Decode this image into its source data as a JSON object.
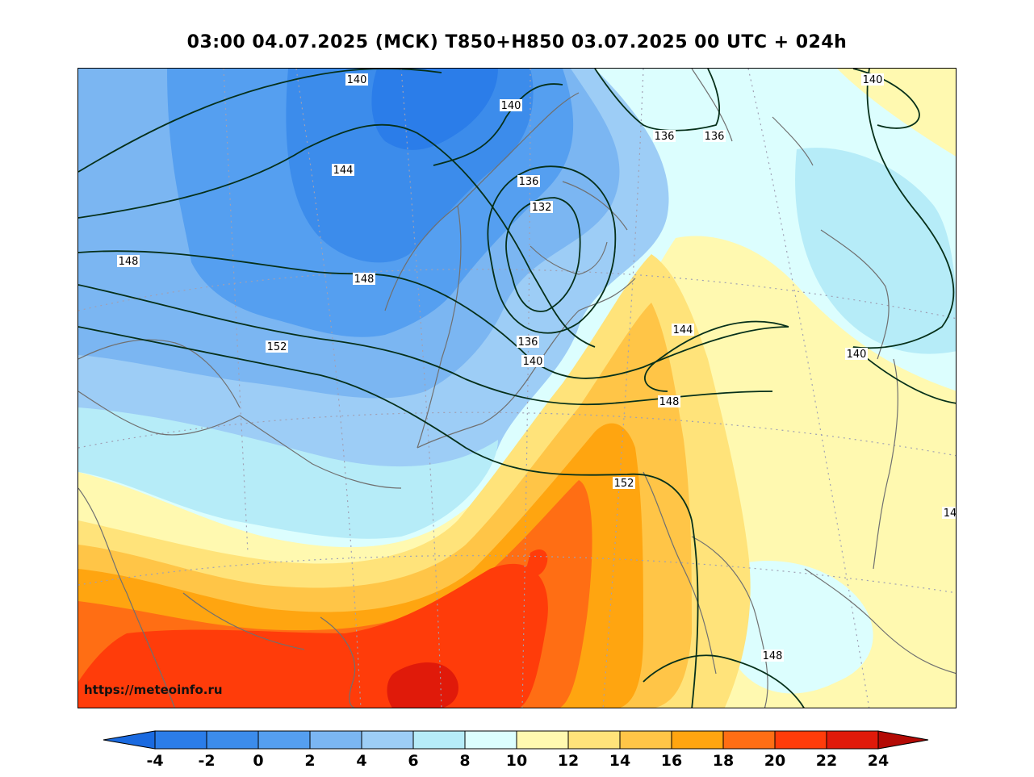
{
  "title": "03:00 04.07.2025 (МСК) T850+H850 03.07.2025 00 UTC + 024h",
  "watermark": "https://meteoinfo.ru",
  "colors": {
    "t_m4": "#2b7de9",
    "t_m2": "#3c8ceb",
    "t_0": "#559ff0",
    "t_2": "#7bb6f2",
    "t_4": "#9dcdf6",
    "t_6": "#b6ecf8",
    "t_8": "#dcfefe",
    "t_10": "#fff9b0",
    "t_12": "#ffe37a",
    "t_14": "#ffc547",
    "t_16": "#ffa510",
    "t_18": "#ff6e14",
    "t_20": "#ff3c0a",
    "t_22": "#e01a0a",
    "t_24": "#b40a05",
    "coast": "#707070",
    "isohypse": "#06301a",
    "grid": "#a0a0b4"
  },
  "colorbar": {
    "ticks": [
      "-4",
      "-2",
      "0",
      "2",
      "4",
      "6",
      "8",
      "10",
      "12",
      "14",
      "16",
      "18",
      "20",
      "22",
      "24"
    ],
    "bins": [
      "#2b7de9",
      "#3c8ceb",
      "#559ff0",
      "#7bb6f2",
      "#9dcdf6",
      "#b6ecf8",
      "#dcfefe",
      "#fff9b0",
      "#ffe37a",
      "#ffc547",
      "#ffa510",
      "#ff6e14",
      "#ff3c0a",
      "#e01a0a"
    ],
    "low_extend": "#1a6ae0",
    "high_extend": "#b40a05"
  },
  "isohypse_labels": [
    "140",
    "140",
    "144",
    "148",
    "148",
    "152",
    "136",
    "132",
    "136",
    "140",
    "136",
    "136",
    "144",
    "140",
    "140",
    "148",
    "152",
    "14",
    "148"
  ]
}
